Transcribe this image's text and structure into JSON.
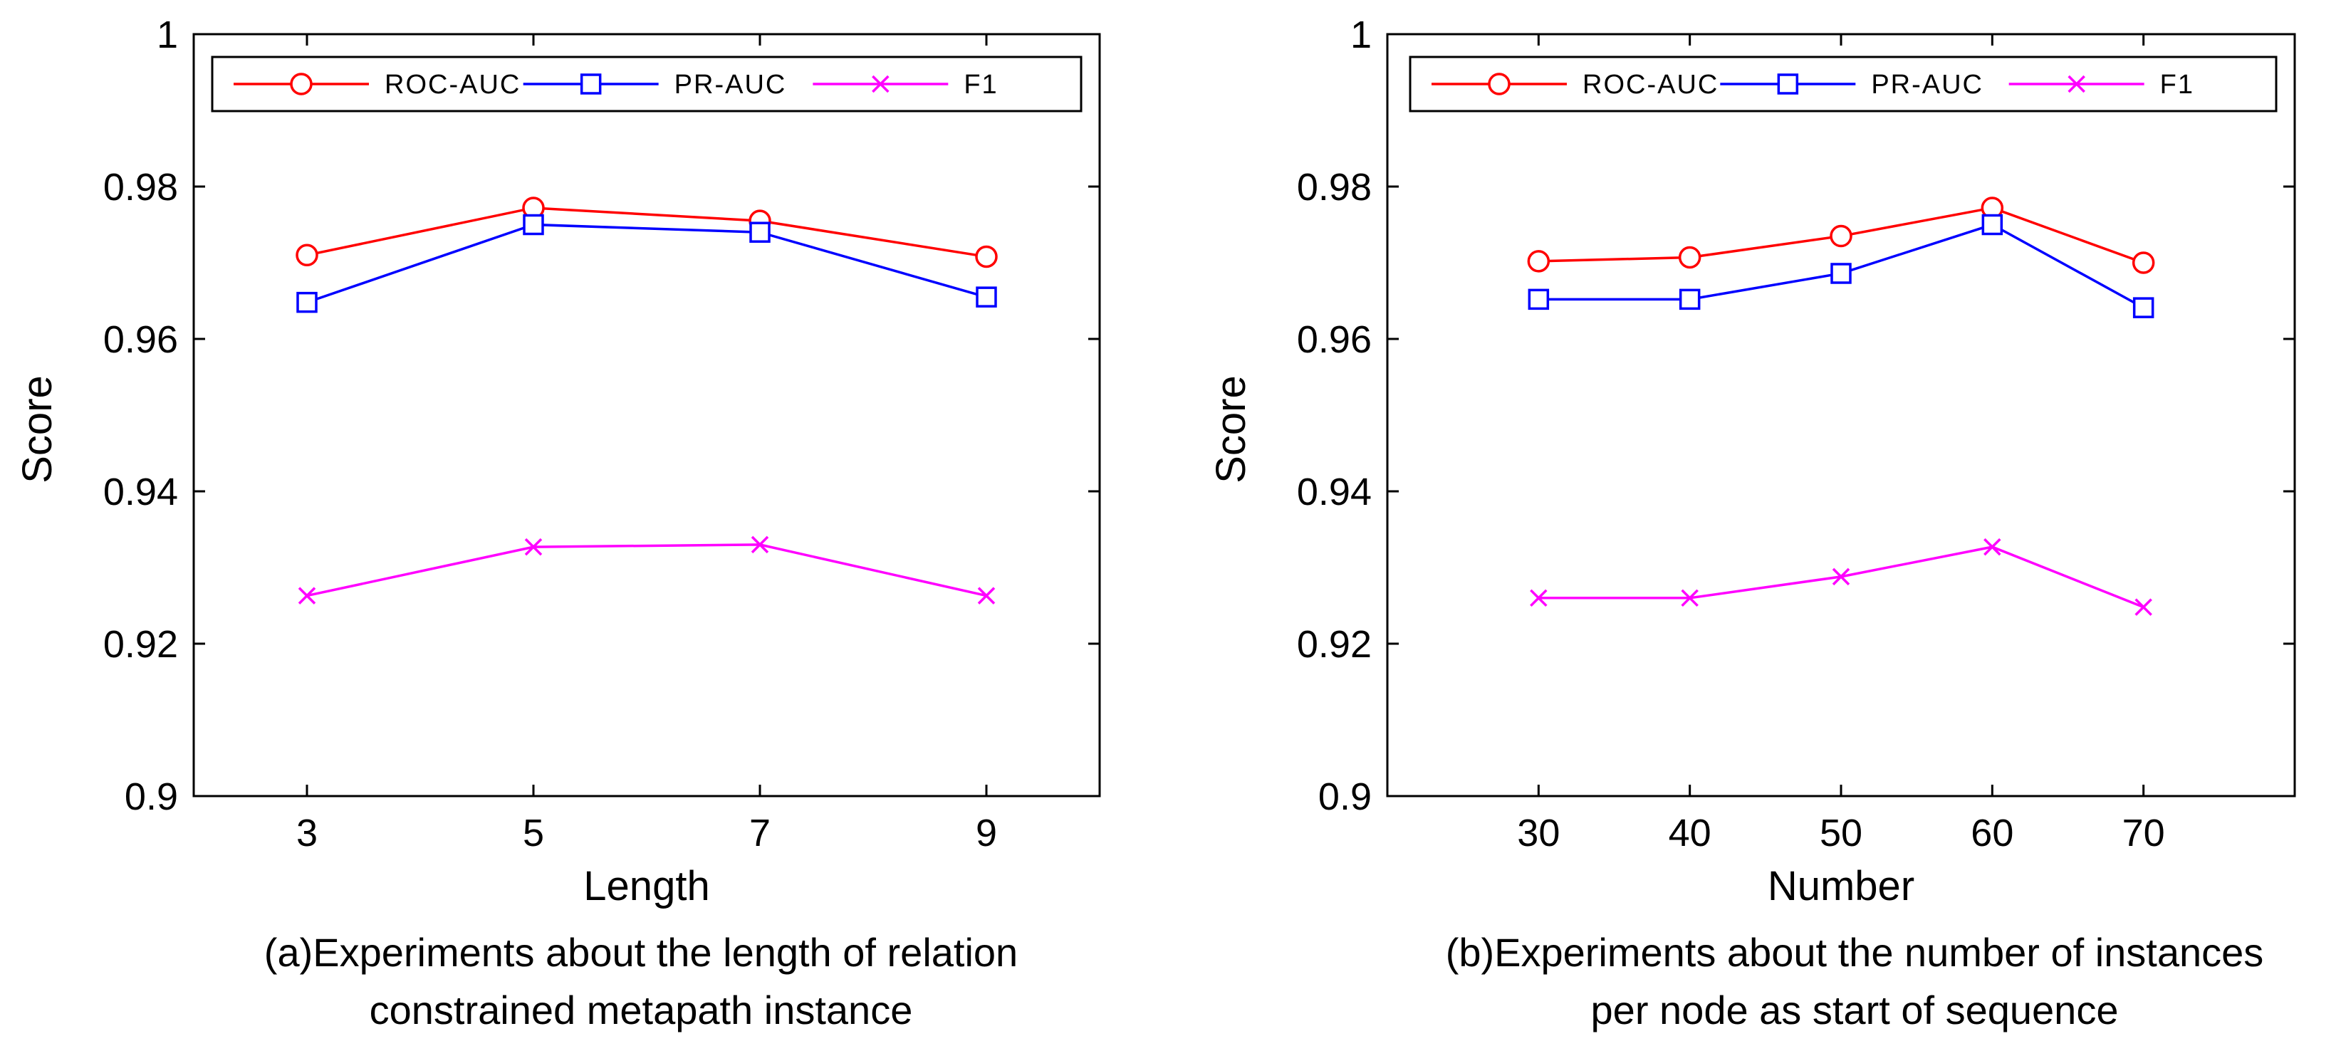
{
  "chart_data": [
    {
      "type": "line",
      "x": [
        3,
        5,
        7,
        9
      ],
      "xticks": [
        "3",
        "5",
        "7",
        "9"
      ],
      "xlim": [
        2.0,
        10.0
      ],
      "ylim": [
        0.9,
        1.0
      ],
      "yticks": [
        "0.9",
        "0.92",
        "0.94",
        "0.96",
        "0.98",
        "1"
      ],
      "xlabel": "Length",
      "ylabel": "Score",
      "caption_line1": "(a)Experiments about the length of relation",
      "caption_line2": "constrained metapath instance",
      "legend_position": "top",
      "series": [
        {
          "name": "ROC-AUC",
          "marker": "circle",
          "color": "#ff0000",
          "values": [
            0.971,
            0.9772,
            0.9755,
            0.9708
          ]
        },
        {
          "name": "PR-AUC",
          "marker": "square",
          "color": "#0000ff",
          "values": [
            0.9648,
            0.975,
            0.974,
            0.9655
          ]
        },
        {
          "name": "F1",
          "marker": "x",
          "color": "#ff00ff",
          "values": [
            0.9263,
            0.9327,
            0.933,
            0.9263
          ]
        }
      ]
    },
    {
      "type": "line",
      "x": [
        30,
        40,
        50,
        60,
        70
      ],
      "xticks": [
        "30",
        "40",
        "50",
        "60",
        "70"
      ],
      "xlim": [
        20,
        80
      ],
      "ylim": [
        0.9,
        1.0
      ],
      "yticks": [
        "0.9",
        "0.92",
        "0.94",
        "0.96",
        "0.98",
        "1"
      ],
      "xlabel": "Number",
      "ylabel": "Score",
      "caption_line1": "(b)Experiments about the number of instances",
      "caption_line2": "per node as start of sequence",
      "legend_position": "top",
      "series": [
        {
          "name": "ROC-AUC",
          "marker": "circle",
          "color": "#ff0000",
          "values": [
            0.9702,
            0.9707,
            0.9735,
            0.9772,
            0.97
          ]
        },
        {
          "name": "PR-AUC",
          "marker": "square",
          "color": "#0000ff",
          "values": [
            0.9652,
            0.9652,
            0.9686,
            0.975,
            0.9641
          ]
        },
        {
          "name": "F1",
          "marker": "x",
          "color": "#ff00ff",
          "values": [
            0.926,
            0.926,
            0.9288,
            0.9327,
            0.9248
          ]
        }
      ]
    }
  ]
}
